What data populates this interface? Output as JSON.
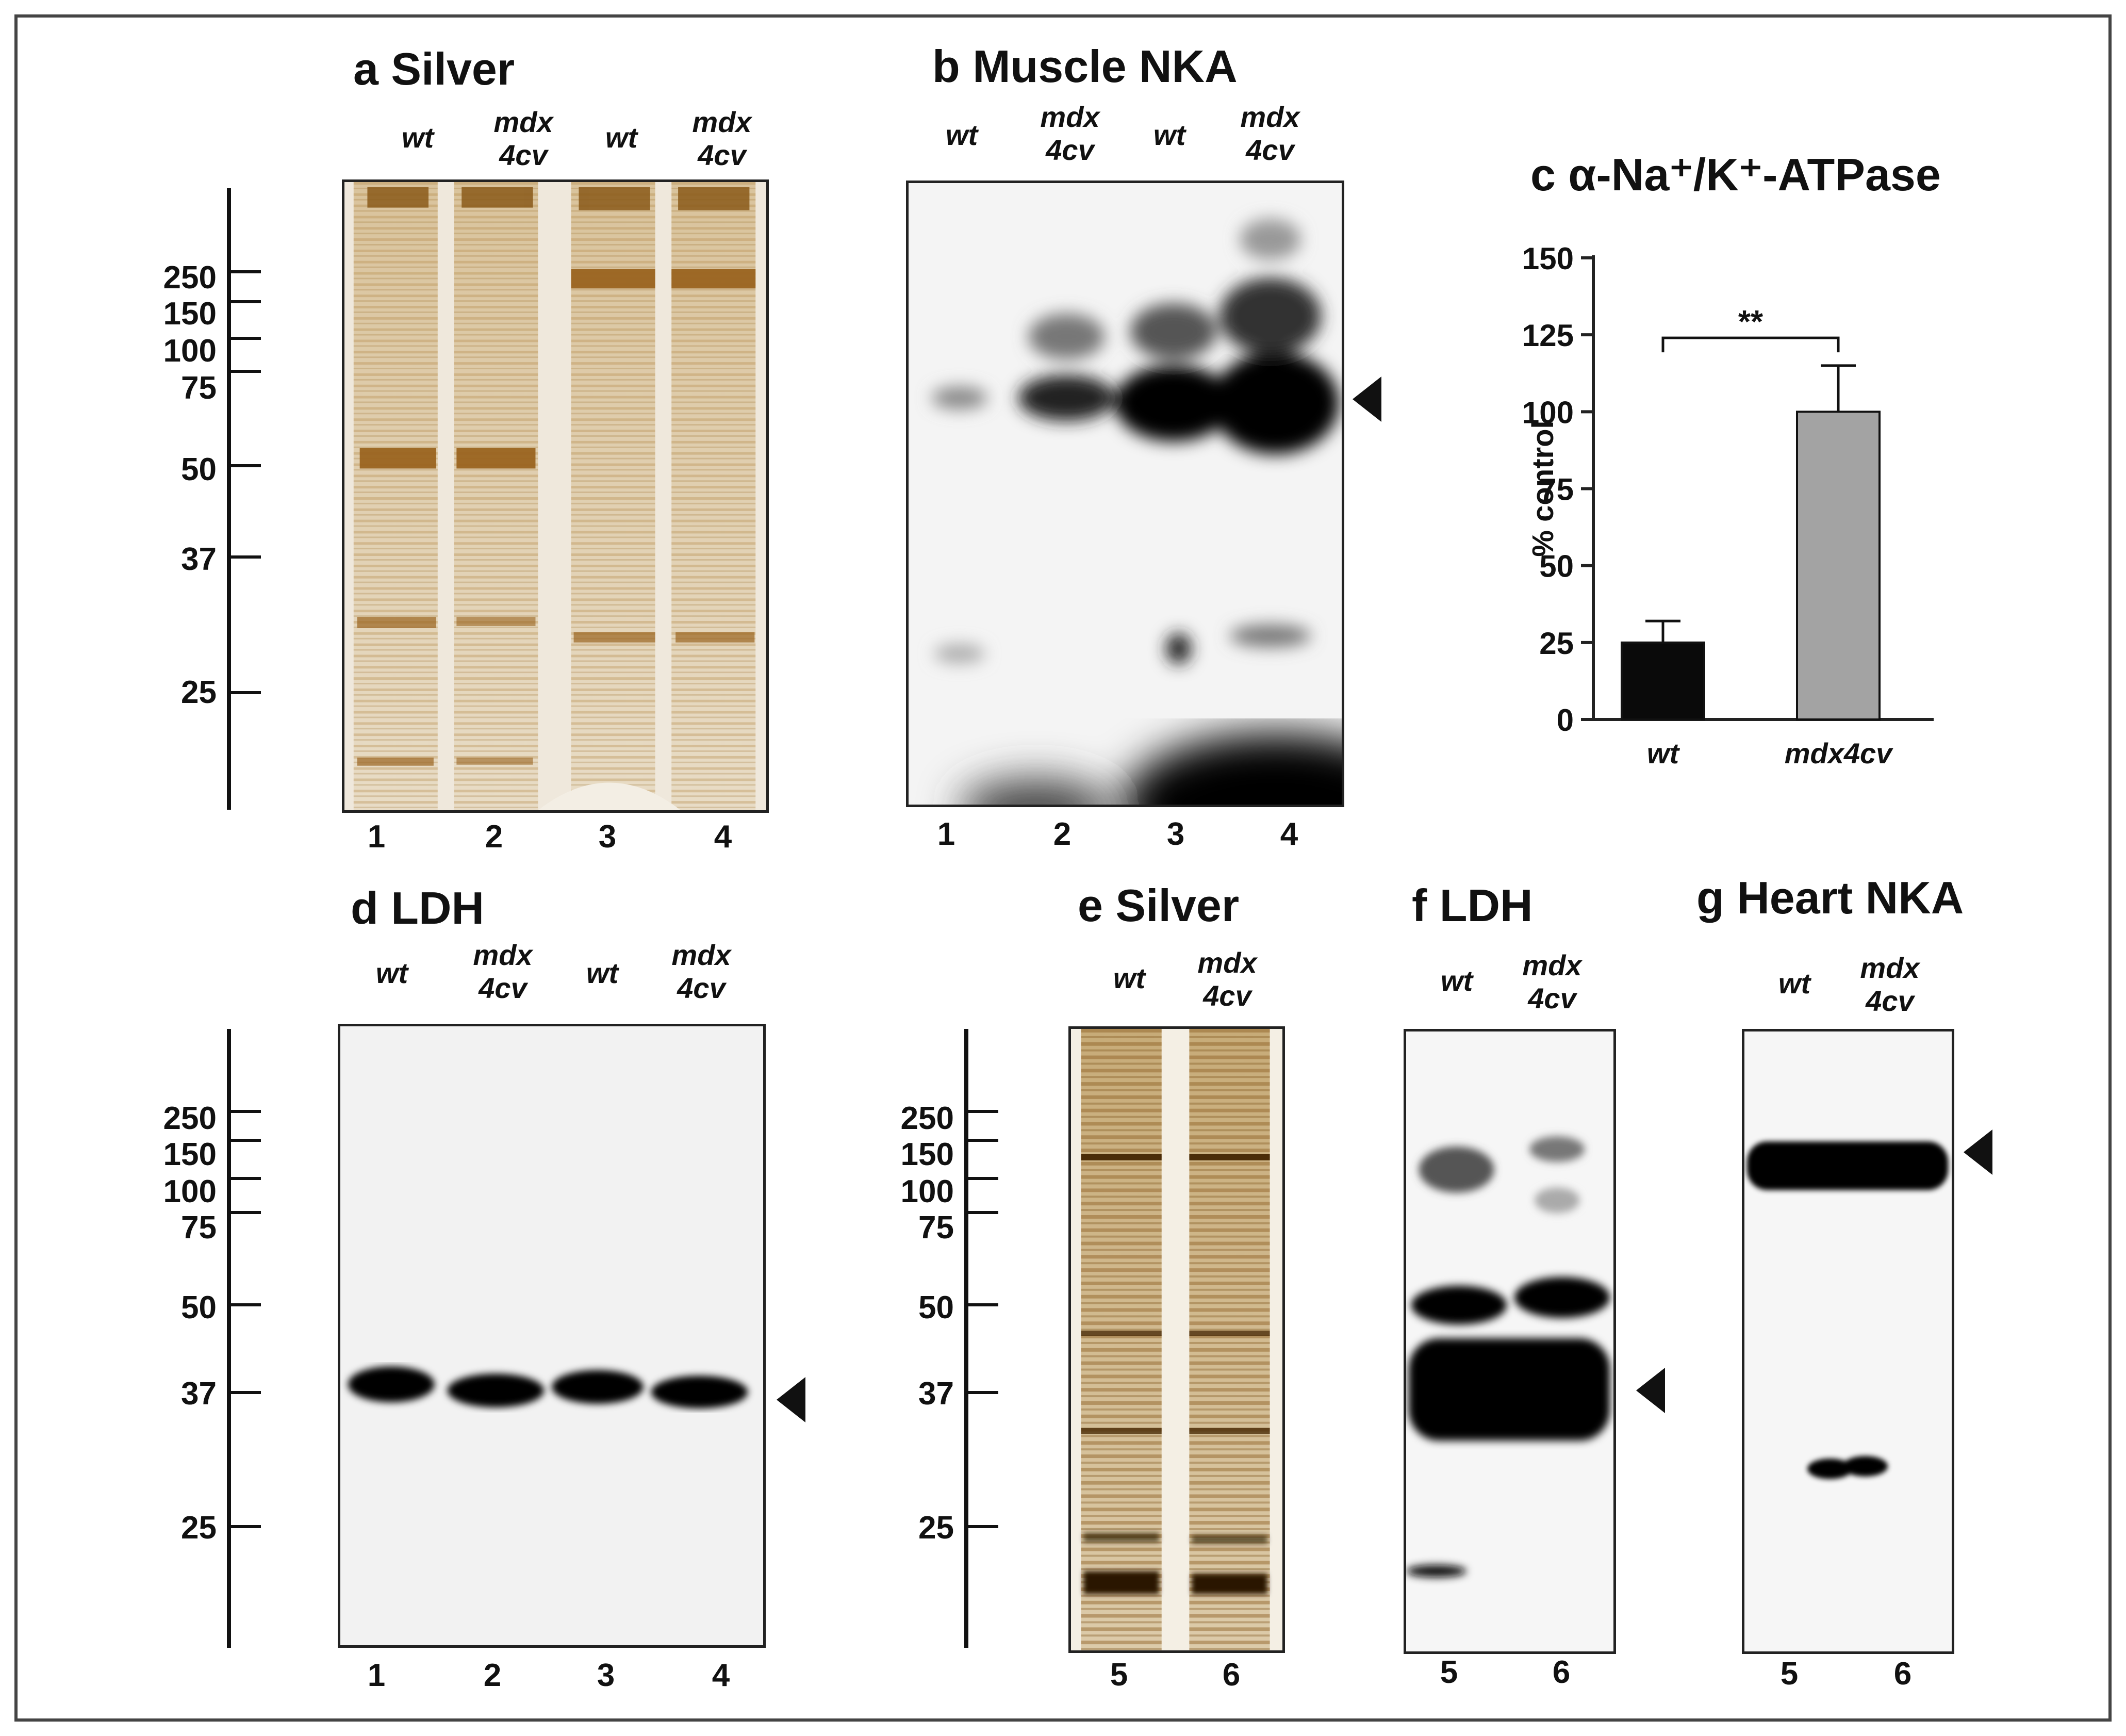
{
  "panels": {
    "a": {
      "title": "a  Silver",
      "lanes": [
        "wt",
        "mdx\n4cv",
        "wt",
        "mdx\n4cv"
      ],
      "numbers": [
        "1",
        "2",
        "3",
        "4"
      ]
    },
    "b": {
      "title": "b  Muscle NKA",
      "lanes": [
        "wt",
        "mdx\n4cv",
        "wt",
        "mdx\n4cv"
      ],
      "numbers": [
        "1",
        "2",
        "3",
        "4"
      ]
    },
    "d": {
      "title": "d LDH",
      "lanes": [
        "wt",
        "mdx\n4cv",
        "wt",
        "mdx\n4cv"
      ],
      "numbers": [
        "1",
        "2",
        "3",
        "4"
      ]
    },
    "e": {
      "title": "e  Silver",
      "lanes": [
        "wt",
        "mdx\n4cv"
      ],
      "numbers": [
        "5",
        "6"
      ]
    },
    "f": {
      "title": "f  LDH",
      "lanes": [
        "wt",
        "mdx\n4cv"
      ],
      "numbers": [
        "5",
        "6"
      ]
    },
    "g": {
      "title": "g Heart NKA",
      "lanes": [
        "wt",
        "mdx\n4cv"
      ],
      "numbers": [
        "5",
        "6"
      ]
    }
  },
  "mw_markers": [
    "250",
    "150",
    "100",
    "75",
    "50",
    "37",
    "25"
  ],
  "chart_data": {
    "type": "bar",
    "title": "c  α-Na⁺/K⁺-ATPase",
    "ylabel": "% control",
    "xlabel": "",
    "categories": [
      "wt",
      "mdx4cv"
    ],
    "values": [
      25,
      100
    ],
    "errors": [
      7,
      15
    ],
    "colors": [
      "#0a0a0a",
      "#a3a3a3"
    ],
    "ylim": [
      0,
      150
    ],
    "yticks": [
      "0",
      "25",
      "50",
      "75",
      "100",
      "125",
      "150"
    ],
    "significance": "**",
    "grid": false
  }
}
